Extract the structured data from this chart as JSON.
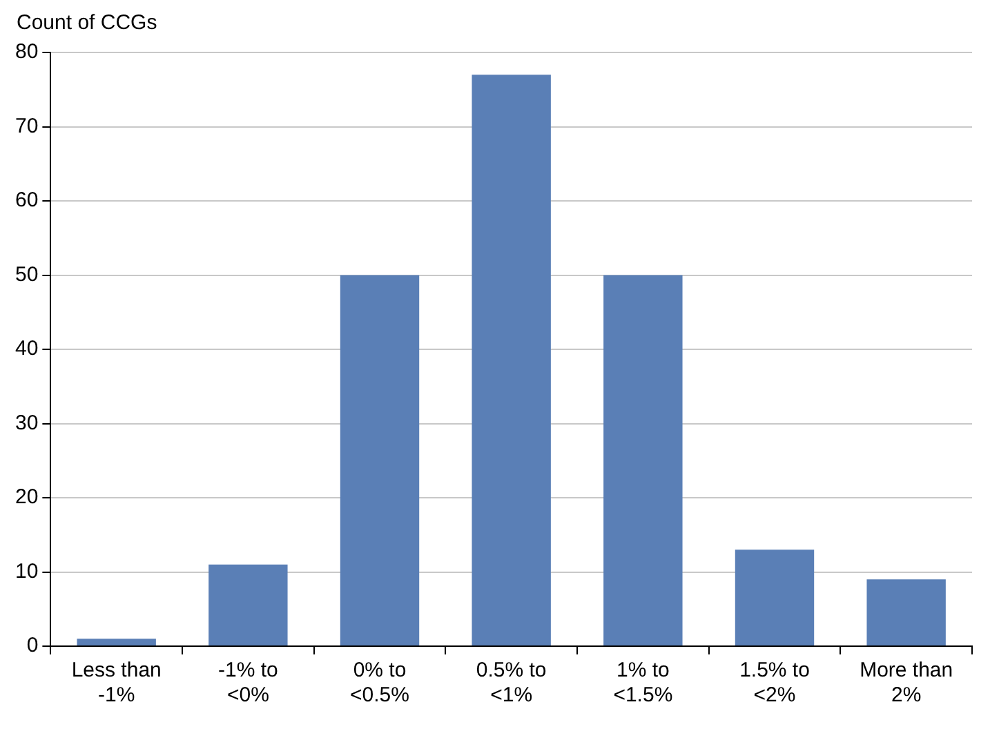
{
  "chart_data": {
    "type": "bar",
    "ylabel": "Count of CCGs",
    "categories": [
      "Less than -1%",
      "-1% to <0%",
      "0% to <0.5%",
      "0.5% to <1%",
      "1% to <1.5%",
      "1.5% to <2%",
      "More than 2%"
    ],
    "values": [
      1,
      11,
      50,
      77,
      50,
      13,
      9
    ],
    "color": "#5a7fb6",
    "ylim": [
      0,
      80
    ],
    "yticks": [
      0,
      10,
      20,
      30,
      40,
      50,
      60,
      70,
      80
    ],
    "grid": "y",
    "legend": false
  }
}
